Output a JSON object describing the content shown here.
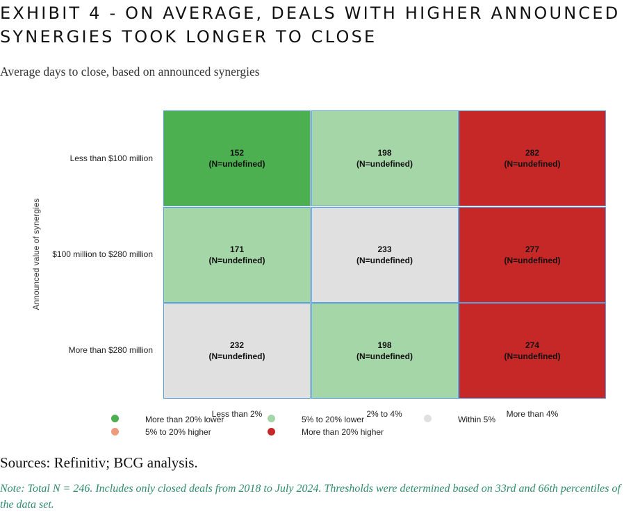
{
  "title": "Exhibit 4 - On average, deals with higher announced synergies took longer to close",
  "subtitle": "Average days to close, based on announced synergies",
  "sources": "Sources: Refinitiv; BCG analysis.",
  "note": "Note: Total N = 246. Includes only closed deals from 2018 to July 2024. Thresholds were determined based on 33rd and 66th percentiles of the data set.",
  "chart_data": {
    "type": "heatmap",
    "ylabel": "Announced value of synergies",
    "xlabel": "",
    "rows": [
      "Less than $100 million",
      "$100 million to $280 million",
      "More than $280 million"
    ],
    "columns": [
      "Less than 2%",
      "2% to 4%",
      "More than 4%"
    ],
    "values": [
      [
        152,
        198,
        282
      ],
      [
        171,
        233,
        277
      ],
      [
        232,
        198,
        274
      ]
    ],
    "counts_text": [
      [
        "(N=undefined)",
        "(N=undefined)",
        "(N=undefined)"
      ],
      [
        "(N=undefined)",
        "(N=undefined)",
        "(N=undefined)"
      ],
      [
        "(N=undefined)",
        "(N=undefined)",
        "(N=undefined)"
      ]
    ],
    "categories": [
      [
        "more-than-20-lower",
        "5-to-20-lower",
        "more-than-20-higher"
      ],
      [
        "5-to-20-lower",
        "within-5",
        "more-than-20-higher"
      ],
      [
        "within-5",
        "5-to-20-lower",
        "more-than-20-higher"
      ]
    ],
    "legend": [
      {
        "key": "more-than-20-lower",
        "label": "More than 20% lower",
        "color": "#4caf50"
      },
      {
        "key": "5-to-20-lower",
        "label": "5% to 20% lower",
        "color": "#a5d6a7"
      },
      {
        "key": "within-5",
        "label": "Within 5%",
        "color": "#e0e0e0"
      },
      {
        "key": "5-to-20-higher",
        "label": "5% to 20% higher",
        "color": "#ef9a7a"
      },
      {
        "key": "more-than-20-higher",
        "label": "More than 20% higher",
        "color": "#c62828"
      }
    ],
    "legend_position": "bottom"
  }
}
